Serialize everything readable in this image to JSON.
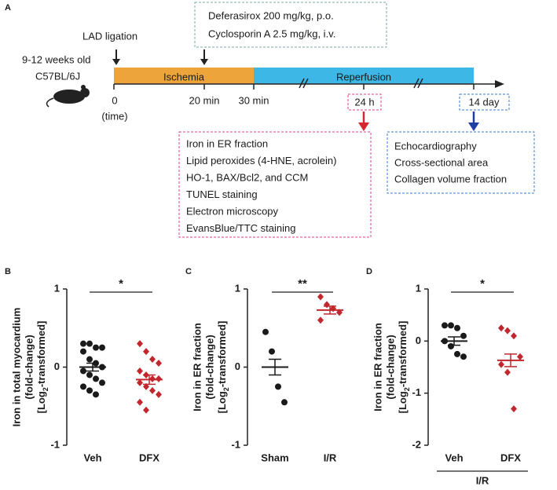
{
  "panel_a": {
    "label": "A",
    "lad": "LAD ligation",
    "mouse_age": "9-12 weeks old",
    "mouse_strain": "C57BL/6J",
    "drugs": [
      "Deferasirox 200 mg/kg, p.o.",
      "Cyclosporin A  2.5 mg/kg, i.v."
    ],
    "ischemia": "Ischemia",
    "reperfusion": "Reperfusion",
    "t0": "0",
    "time": "(time)",
    "t20": "20 min",
    "t30": "30 min",
    "t24": "24 h",
    "t14": "14 day",
    "list_24h": [
      "Iron in ER fraction",
      "Lipid peroxides (4-HNE, acrolein)",
      "HO-1, BAX/Bcl2, and CCM",
      "TUNEL staining",
      "Electron microscopy",
      "EvansBlue/TTC staining"
    ],
    "list_14d": [
      "Echocardiography",
      "Cross-sectional area",
      "Collagen volume fraction"
    ]
  },
  "chart_data": [
    {
      "type": "dot",
      "panel": "B",
      "ylabel": [
        "Iron in total myocardium",
        "(fold-change)"
      ],
      "ylabel_last": {
        "pre": "[Log",
        "sub": "2",
        "post": "-transformed]"
      },
      "categories": [
        "Veh",
        "DFX"
      ],
      "ylim": [
        -1,
        1
      ],
      "yticks": [
        -1,
        0,
        1
      ],
      "points": [
        [
          0.3,
          0.3,
          0.25,
          0.25,
          0.2,
          0.1,
          0.05,
          0,
          -0.05,
          -0.1,
          -0.15,
          -0.2,
          -0.25,
          -0.3,
          -0.35
        ],
        [
          0.3,
          0.2,
          0.1,
          0.05,
          -0.05,
          -0.1,
          -0.15,
          -0.15,
          -0.2,
          -0.25,
          -0.3,
          -0.35,
          -0.45,
          -0.55
        ]
      ],
      "means": [
        0,
        -0.16
      ],
      "errors": [
        0.05,
        0.06
      ],
      "colors": [
        "#1a1a1a",
        "#c1272d"
      ],
      "markers": [
        "circle",
        "diamond"
      ],
      "significance": "*"
    },
    {
      "type": "dot",
      "panel": "C",
      "ylabel": [
        "Iron in ER fraction",
        "(fold-change)"
      ],
      "ylabel_last": {
        "pre": "[Log",
        "sub": "2",
        "post": "-transformed]"
      },
      "categories": [
        "Sham",
        "I/R"
      ],
      "ylim": [
        -1,
        1
      ],
      "yticks": [
        -1,
        0,
        1
      ],
      "points": [
        [
          0.45,
          0.2,
          -0.25,
          -0.45
        ],
        [
          0.9,
          0.8,
          0.75,
          0.7,
          0.6
        ]
      ],
      "means": [
        0,
        0.73
      ],
      "errors": [
        0.1,
        0.05
      ],
      "colors": [
        "#1a1a1a",
        "#c1272d"
      ],
      "markers": [
        "circle",
        "diamond"
      ],
      "significance": "**"
    },
    {
      "type": "dot",
      "panel": "D",
      "ylabel": [
        "Iron in ER fraction",
        "(fold-change)"
      ],
      "ylabel_last": {
        "pre": "[Log",
        "sub": "2",
        "post": "-transformed]"
      },
      "categories": [
        "Veh",
        "DFX"
      ],
      "ylim": [
        -2,
        1
      ],
      "yticks": [
        -2,
        -1,
        0,
        1
      ],
      "points": [
        [
          0.3,
          0.3,
          0.25,
          0.1,
          0,
          -0.1,
          -0.25,
          -0.3
        ],
        [
          0.25,
          0.2,
          0.1,
          -0.3,
          -0.45,
          -0.6,
          -1.3
        ]
      ],
      "means": [
        0,
        -0.37
      ],
      "errors": [
        0.08,
        0.12
      ],
      "colors": [
        "#1a1a1a",
        "#c1272d"
      ],
      "markers": [
        "circle",
        "diamond"
      ],
      "significance": "*",
      "group_label": "I/R"
    }
  ]
}
